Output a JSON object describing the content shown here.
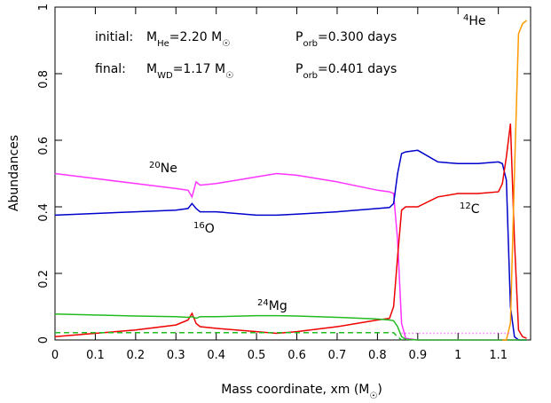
{
  "chart_data": {
    "type": "line",
    "xlabel": [
      {
        "text": "Mass coordinate, xm  (M"
      },
      {
        "text": "☉",
        "shift": "sub"
      },
      {
        "text": ")"
      }
    ],
    "ylabel": "Abundances",
    "annotations": [
      [
        {
          "text": "initial:"
        }
      ],
      [
        {
          "text": "M"
        },
        {
          "text": "He",
          "shift": "sub"
        },
        {
          "text": "=2.20 M"
        },
        {
          "text": "☉",
          "shift": "sub"
        }
      ],
      [
        {
          "text": "P"
        },
        {
          "text": "orb",
          "shift": "sub"
        },
        {
          "text": "=0.300 days"
        }
      ],
      [
        {
          "text": "final:"
        }
      ],
      [
        {
          "text": "M"
        },
        {
          "text": "WD",
          "shift": "sub"
        },
        {
          "text": "=1.17 M"
        },
        {
          "text": "☉",
          "shift": "sub"
        }
      ],
      [
        {
          "text": "P"
        },
        {
          "text": "orb",
          "shift": "sub"
        },
        {
          "text": "=0.401 days"
        }
      ]
    ],
    "x": [
      0,
      0.1,
      0.2,
      0.3,
      0.33,
      0.34,
      0.35,
      0.36,
      0.4,
      0.5,
      0.55,
      0.6,
      0.7,
      0.8,
      0.83,
      0.84,
      0.85,
      0.86,
      0.87,
      0.9,
      0.95,
      1.0,
      1.05,
      1.1,
      1.11,
      1.12,
      1.13,
      1.14,
      1.15,
      1.16,
      1.17
    ],
    "series": [
      {
        "label": [
          {
            "text": "20",
            "shift": "super"
          },
          {
            "text": "Ne"
          }
        ],
        "color": "#ff33ff",
        "values": [
          0.5,
          0.485,
          0.47,
          0.455,
          0.45,
          0.43,
          0.475,
          0.465,
          0.47,
          0.49,
          0.5,
          0.495,
          0.475,
          0.45,
          0.445,
          0.44,
          0.3,
          0.05,
          0.005,
          0,
          0,
          0,
          0,
          0,
          0,
          0,
          0,
          0,
          0,
          0,
          0
        ]
      },
      {
        "label": [
          {
            "text": "16",
            "shift": "super"
          },
          {
            "text": "O"
          }
        ],
        "color": "#0000cc",
        "values": [
          0.375,
          0.38,
          0.385,
          0.39,
          0.395,
          0.41,
          0.395,
          0.385,
          0.385,
          0.375,
          0.375,
          0.378,
          0.385,
          0.395,
          0.398,
          0.41,
          0.5,
          0.56,
          0.565,
          0.57,
          0.535,
          0.53,
          0.53,
          0.535,
          0.53,
          0.48,
          0.1,
          0.01,
          0,
          0,
          0
        ]
      },
      {
        "label": [
          {
            "text": "12",
            "shift": "super"
          },
          {
            "text": "C"
          }
        ],
        "color": "#ee0000",
        "values": [
          0.01,
          0.02,
          0.03,
          0.045,
          0.06,
          0.08,
          0.05,
          0.04,
          0.035,
          0.025,
          0.02,
          0.025,
          0.04,
          0.06,
          0.065,
          0.1,
          0.25,
          0.39,
          0.4,
          0.4,
          0.43,
          0.44,
          0.44,
          0.445,
          0.47,
          0.55,
          0.65,
          0.3,
          0.03,
          0.01,
          0.005
        ]
      },
      {
        "label": [
          {
            "text": "24",
            "shift": "super"
          },
          {
            "text": "Mg"
          }
        ],
        "color": "#22bb22",
        "values": [
          0.078,
          0.075,
          0.072,
          0.07,
          0.068,
          0.07,
          0.065,
          0.07,
          0.07,
          0.073,
          0.073,
          0.072,
          0.068,
          0.063,
          0.06,
          0.058,
          0.04,
          0.01,
          0.002,
          0,
          0,
          0,
          0,
          0,
          0,
          0,
          0,
          0,
          0,
          0,
          0
        ]
      },
      {
        "label": [
          {
            "text": "4",
            "shift": "super"
          },
          {
            "text": "He"
          }
        ],
        "color": "#ff9900",
        "values": [
          null,
          null,
          null,
          null,
          null,
          null,
          null,
          null,
          null,
          null,
          null,
          null,
          null,
          null,
          null,
          null,
          null,
          null,
          null,
          null,
          null,
          null,
          null,
          null,
          0,
          0,
          0.05,
          0.5,
          0.92,
          0.95,
          0.96
        ]
      },
      {
        "color": "#22bb22",
        "dash": "6,4",
        "values": [
          0.022,
          0.022,
          0.022,
          0.022,
          0.022,
          0.022,
          0.022,
          0.022,
          0.022,
          0.022,
          0.022,
          0.022,
          0.022,
          0.022,
          0.022,
          0.022,
          0.01,
          0,
          null,
          null,
          null,
          null,
          null,
          null,
          null,
          null,
          null,
          null,
          null,
          null,
          null
        ]
      },
      {
        "color": "#ff33ff",
        "dash": "1,3",
        "values": [
          null,
          null,
          null,
          null,
          null,
          null,
          null,
          null,
          null,
          null,
          null,
          null,
          null,
          null,
          null,
          null,
          null,
          0.02,
          0.02,
          0.02,
          0.02,
          0.02,
          0.02,
          0.02,
          0.02,
          0.02,
          0.02,
          null,
          null,
          null,
          null
        ]
      }
    ],
    "xlim": [
      0,
      1.18
    ],
    "ylim": [
      0,
      1
    ],
    "xticks": [
      0,
      0.1,
      0.2,
      0.3,
      0.4,
      0.5,
      0.6,
      0.7,
      0.8,
      0.9,
      1,
      1.1
    ],
    "yticks": [
      0,
      0.2,
      0.4,
      0.6,
      0.8,
      1
    ]
  }
}
